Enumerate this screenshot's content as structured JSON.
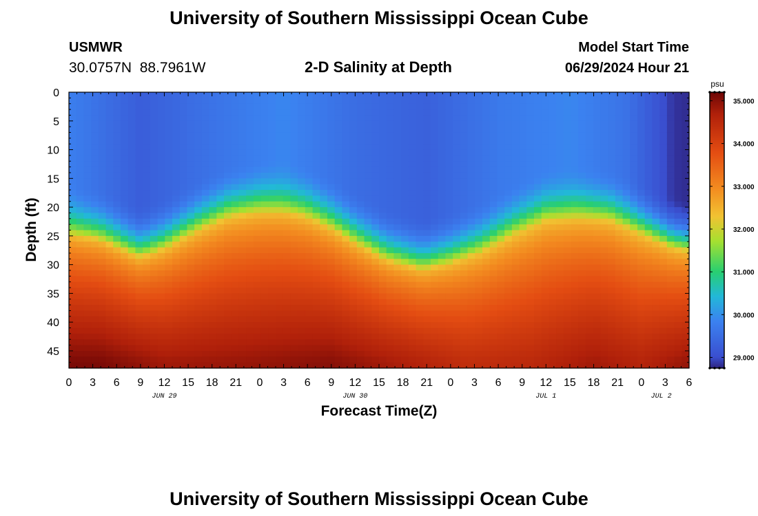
{
  "chart_data": {
    "type": "heatmap",
    "title": "University of Southern Mississippi Ocean Cube",
    "footer_title": "University of Southern Mississippi Ocean Cube",
    "station": "USMWR",
    "coords": "30.0757N  88.7961W",
    "subtitle": "2-D Salinity at Depth",
    "model_start_label": "Model Start Time",
    "model_start": "06/29/2024 Hour 21",
    "xlabel": "Forecast Time(Z)",
    "ylabel": "Depth (ft)",
    "x_hours_range": [
      0,
      78
    ],
    "x_tick_labels": [
      "0",
      "3",
      "6",
      "9",
      "12",
      "15",
      "18",
      "21",
      "0",
      "3",
      "6",
      "9",
      "12",
      "15",
      "18",
      "21",
      "0",
      "3",
      "6",
      "9",
      "12",
      "15",
      "18",
      "21",
      "0",
      "3",
      "6"
    ],
    "date_labels": [
      {
        "text": "JUN 29",
        "hour": 12
      },
      {
        "text": "JUN 30",
        "hour": 36
      },
      {
        "text": "JUL 1",
        "hour": 60
      },
      {
        "text": "JUL 2",
        "hour": 74.5
      }
    ],
    "ylim": [
      0,
      48
    ],
    "y_ticks": [
      0,
      5,
      10,
      15,
      20,
      25,
      30,
      35,
      40,
      45
    ],
    "colorbar": {
      "unit": "psu",
      "min": 28.75,
      "max": 35.2,
      "ticks": [
        "29.000",
        "30.000",
        "31.000",
        "32.000",
        "33.000",
        "34.000",
        "35.000"
      ]
    },
    "halocline_depth_ft": {
      "hours": [
        0,
        4,
        8,
        9,
        12,
        16,
        20,
        24,
        27,
        30,
        33,
        36,
        40,
        44,
        45,
        48,
        52,
        56,
        60,
        64,
        68,
        72,
        76,
        78
      ],
      "depths": [
        24.5,
        25.5,
        28,
        28.5,
        27,
        24,
        21.5,
        20.5,
        20.5,
        21.5,
        23.5,
        26,
        29,
        30.5,
        30.5,
        29.5,
        27.5,
        24.5,
        22,
        21.5,
        22,
        24.5,
        27,
        27.5
      ]
    },
    "surface_salinity_psu": {
      "hours": [
        0,
        9,
        18,
        27,
        36,
        45,
        54,
        63,
        70,
        74,
        76,
        78
      ],
      "values": [
        29.8,
        29.25,
        29.6,
        29.9,
        29.5,
        29.3,
        29.7,
        29.9,
        29.6,
        29.1,
        28.85,
        28.8
      ]
    },
    "bottom_salinity_psu": {
      "hours": [
        0,
        4,
        12,
        24,
        33,
        42,
        50,
        58,
        66,
        72,
        78
      ],
      "values": [
        35.1,
        35.1,
        34.8,
        34.9,
        35.0,
        34.7,
        34.4,
        34.5,
        34.8,
        34.6,
        34.9
      ]
    }
  }
}
